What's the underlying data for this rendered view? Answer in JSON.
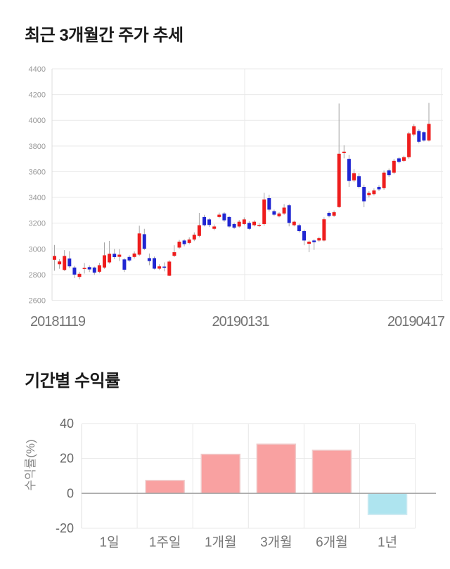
{
  "page": {
    "background": "#ffffff"
  },
  "chart_data": [
    {
      "type": "candlestick",
      "title": "최근 3개월간 주가 추세",
      "x_tick_labels": [
        "20181119",
        "20190131",
        "20190417"
      ],
      "y_ticks": [
        4400,
        4200,
        4000,
        3800,
        3600,
        3400,
        3200,
        3000,
        2800,
        2600
      ],
      "ylim": [
        2600,
        4400
      ],
      "grid": true,
      "colors": {
        "up": "#ee1d1d",
        "down": "#2026d2",
        "wick": "#a6a6a6",
        "grid_line": "#e9e9e9",
        "axis_line": "#dcdcdc",
        "y_tick_text": "#999999",
        "x_tick_text": "#737373"
      },
      "ohlc_order": "open, close, high, low",
      "candles": [
        [
          2915,
          2945,
          3030,
          2830
        ],
        [
          2880,
          2902,
          2920,
          2845
        ],
        [
          2836,
          2945,
          2990,
          2828
        ],
        [
          2925,
          2864,
          2982,
          2850
        ],
        [
          2855,
          2800,
          2868,
          2773
        ],
        [
          2782,
          2806,
          2822,
          2764
        ],
        [
          2846,
          2852,
          2890,
          2808
        ],
        [
          2858,
          2840,
          2872,
          2820
        ],
        [
          2855,
          2815,
          2862,
          2798
        ],
        [
          2822,
          2873,
          2892,
          2810
        ],
        [
          2855,
          2950,
          3050,
          2845
        ],
        [
          2895,
          2962,
          3062,
          2885
        ],
        [
          2962,
          2936,
          3000,
          2920
        ],
        [
          2938,
          2955,
          2998,
          2905
        ],
        [
          2918,
          2838,
          2928,
          2820
        ],
        [
          2937,
          2910,
          2950,
          2900
        ],
        [
          2937,
          2964,
          2980,
          2925
        ],
        [
          2955,
          3120,
          3180,
          2945
        ],
        [
          3114,
          3001,
          3156,
          2990
        ],
        [
          2928,
          2905,
          2964,
          2873
        ],
        [
          2928,
          2846,
          2940,
          2840
        ],
        [
          2846,
          2864,
          2880,
          2836
        ],
        [
          2862,
          2858,
          2895,
          2825
        ],
        [
          2791,
          2901,
          2912,
          2788
        ],
        [
          2946,
          2974,
          3028,
          2936
        ],
        [
          3010,
          3056,
          3070,
          3000
        ],
        [
          3065,
          3037,
          3075,
          3020
        ],
        [
          3046,
          3073,
          3090,
          3036
        ],
        [
          3073,
          3110,
          3128,
          3060
        ],
        [
          3101,
          3184,
          3280,
          3090
        ],
        [
          3248,
          3184,
          3265,
          3175
        ],
        [
          3229,
          3186,
          3240,
          3170
        ],
        [
          3156,
          3174,
          3190,
          3145
        ],
        [
          3248,
          3266,
          3282,
          3238
        ],
        [
          3275,
          3222,
          3285,
          3210
        ],
        [
          3248,
          3174,
          3255,
          3165
        ],
        [
          3193,
          3165,
          3205,
          3155
        ],
        [
          3174,
          3211,
          3225,
          3165
        ],
        [
          3193,
          3229,
          3245,
          3185
        ],
        [
          3202,
          3156,
          3215,
          3148
        ],
        [
          3184,
          3211,
          3222,
          3175
        ],
        [
          3184,
          3186,
          3200,
          3170
        ],
        [
          3193,
          3384,
          3436,
          3180
        ],
        [
          3395,
          3305,
          3420,
          3290
        ],
        [
          3293,
          3266,
          3305,
          3255
        ],
        [
          3253,
          3275,
          3285,
          3245
        ],
        [
          3275,
          3321,
          3348,
          3265
        ],
        [
          3339,
          3202,
          3350,
          3175
        ],
        [
          3184,
          3211,
          3220,
          3175
        ],
        [
          3184,
          3138,
          3195,
          3128
        ],
        [
          3138,
          3065,
          3150,
          3028
        ],
        [
          3040,
          3056,
          3065,
          2974
        ],
        [
          3065,
          3052,
          3075,
          2992
        ],
        [
          3065,
          3083,
          3095,
          3055
        ],
        [
          3065,
          3230,
          3245,
          3058
        ],
        [
          3280,
          3256,
          3292,
          3245
        ],
        [
          3258,
          3285,
          3298,
          3248
        ],
        [
          3325,
          3740,
          4130,
          3320
        ],
        [
          3745,
          3756,
          3806,
          3704
        ],
        [
          3700,
          3528,
          3730,
          3482
        ],
        [
          3533,
          3589,
          3620,
          3520
        ],
        [
          3565,
          3482,
          3590,
          3470
        ],
        [
          3482,
          3370,
          3500,
          3324
        ],
        [
          3417,
          3435,
          3450,
          3400
        ],
        [
          3426,
          3454,
          3470,
          3415
        ],
        [
          3482,
          3463,
          3495,
          3450
        ],
        [
          3472,
          3593,
          3610,
          3460
        ],
        [
          3611,
          3574,
          3625,
          3560
        ],
        [
          3593,
          3685,
          3700,
          3580
        ],
        [
          3704,
          3676,
          3715,
          3665
        ],
        [
          3685,
          3713,
          3725,
          3675
        ],
        [
          3713,
          3898,
          3910,
          3700
        ],
        [
          3889,
          3954,
          3970,
          3875
        ],
        [
          3917,
          3833,
          3930,
          3820
        ],
        [
          3907,
          3843,
          3915,
          3835
        ],
        [
          3843,
          3972,
          4135,
          3835
        ]
      ]
    },
    {
      "type": "bar",
      "title": "기간별 수익률",
      "ylabel": "수익률(%)",
      "categories": [
        "1일",
        "1주일",
        "1개월",
        "3개월",
        "6개월",
        "1년"
      ],
      "values": [
        0,
        7.4,
        22.4,
        28.2,
        24.7,
        -12.1
      ],
      "y_ticks": [
        40,
        20,
        0,
        -20
      ],
      "ylim": [
        -27,
        42
      ],
      "grid": true,
      "colors": {
        "positive_fill": "#f9a1a1",
        "positive_stroke": "#f0cbcb",
        "negative_fill": "#aee4ef",
        "negative_stroke": "#cdeaf2",
        "grid_line": "#e8e8e8",
        "zero_line": "#a8a8a8",
        "axis_line": "#e0e0e0",
        "tick_text": "#666666",
        "category_text": "#777777",
        "ylabel_text": "#888888"
      }
    }
  ]
}
